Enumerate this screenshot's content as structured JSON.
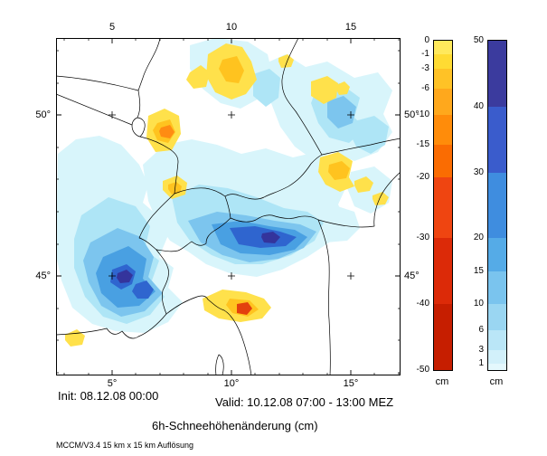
{
  "page": {
    "init_line": "Init: 08.12.08 00:00",
    "valid_line": "Valid: 10.12.08 07:00 - 13:00 MEZ",
    "title": "6h-Schneehöhenänderung (cm)",
    "model_line": "MCCM/V3.4 15 km x 15 km Auflösung"
  },
  "map": {
    "x_ticks_top": [
      "5",
      "10",
      "15"
    ],
    "x_ticks_bottom": [
      "5°",
      "10°",
      "15°"
    ],
    "y_ticks_left": [
      "50°",
      "45°"
    ],
    "y_ticks_right": [
      "50°",
      "45°"
    ]
  },
  "colorbar_negative": {
    "unit": "cm",
    "tick_labels": [
      "0",
      "-1",
      "-3",
      "-6",
      "-10",
      "-15",
      "-20",
      "-30",
      "-40",
      "-50"
    ],
    "segment_colors": [
      "#FFE95C",
      "#FFDB33",
      "#FFC226",
      "#FFA81C",
      "#FF8C0A",
      "#FA6C02",
      "#EF4511",
      "#DC2A08",
      "#C61E00"
    ]
  },
  "colorbar_positive": {
    "unit": "cm",
    "tick_labels": [
      "50",
      "40",
      "30",
      "20",
      "15",
      "10",
      "6",
      "3",
      "1"
    ],
    "segment_colors": [
      "#3B3B9E",
      "#3A5CCC",
      "#3F8DDF",
      "#55ABE7",
      "#7AC4EE",
      "#9AD6F2",
      "#BAE6F7",
      "#D2F0FA",
      "#E4F8FD"
    ]
  }
}
